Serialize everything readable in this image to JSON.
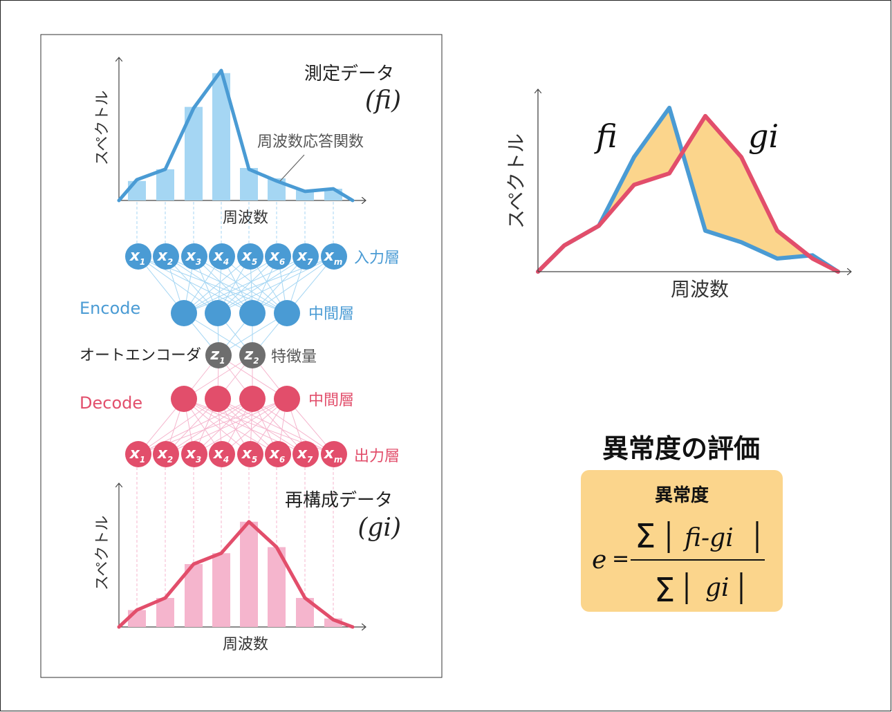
{
  "top_chart": {
    "title_line1": "測定データ",
    "title_line2": "(fi)",
    "ylabel": "スペクトル",
    "xlabel": "周波数",
    "annotation": "周波数応答関数",
    "bars": [
      0.15,
      0.24,
      0.72,
      0.98,
      0.25,
      0.17,
      0.08,
      0.09
    ],
    "line": [
      0.0,
      0.16,
      0.24,
      0.71,
      1.0,
      0.24,
      0.15,
      0.07,
      0.09,
      0.0
    ]
  },
  "network": {
    "input_label": "入力層",
    "input_nodes": [
      {
        "m": "x",
        "s": "1"
      },
      {
        "m": "x",
        "s": "2"
      },
      {
        "m": "x",
        "s": "3"
      },
      {
        "m": "x",
        "s": "4"
      },
      {
        "m": "x",
        "s": "5"
      },
      {
        "m": "x",
        "s": "6"
      },
      {
        "m": "x",
        "s": "7"
      },
      {
        "m": "x",
        "s": "m"
      }
    ],
    "encode_label": "Encode",
    "encode_hidden_label": "中間層",
    "autoencoder_label": "オートエンコーダ",
    "latent_nodes": [
      {
        "m": "z",
        "s": "1"
      },
      {
        "m": "z",
        "s": "2"
      }
    ],
    "latent_label": "特徴量",
    "decode_label": "Decode",
    "decode_hidden_label": "中間層",
    "output_nodes": [
      {
        "m": "x",
        "s": "1"
      },
      {
        "m": "x",
        "s": "2"
      },
      {
        "m": "x",
        "s": "3"
      },
      {
        "m": "x",
        "s": "4"
      },
      {
        "m": "x",
        "s": "5"
      },
      {
        "m": "x",
        "s": "6"
      },
      {
        "m": "x",
        "s": "7"
      },
      {
        "m": "x",
        "s": "m"
      }
    ],
    "output_label": "出力層"
  },
  "bottom_chart": {
    "title_line1": "再構成データ",
    "title_line2": "(gi)",
    "ylabel": "スペクトル",
    "xlabel": "周波数",
    "bars": [
      0.14,
      0.24,
      0.52,
      0.61,
      0.87,
      0.66,
      0.24,
      0.07
    ],
    "line": [
      0.0,
      0.14,
      0.24,
      0.52,
      0.61,
      0.87,
      0.66,
      0.24,
      0.06,
      0.0
    ]
  },
  "compare_chart": {
    "ylabel": "スペクトル",
    "xlabel": "周波数",
    "fi_label": "fi",
    "gi_label": "gi",
    "fi": [
      0.0,
      0.16,
      0.28,
      0.7,
      1.0,
      0.25,
      0.18,
      0.08,
      0.1,
      0.0
    ],
    "gi": [
      0.0,
      0.16,
      0.28,
      0.53,
      0.6,
      0.95,
      0.7,
      0.25,
      0.08,
      0.0
    ]
  },
  "evaluation": {
    "heading": "異常度の評価",
    "box_title": "異常度",
    "lhs": "e",
    "eq": "=",
    "sigma": "Σ",
    "numerator": "fi-gi",
    "denominator": "gi"
  },
  "colors": {
    "blue": "#4a9bd4",
    "light_blue": "#a5d6f3",
    "red": "#e24e6b",
    "pink": "#f5b5cd",
    "gray": "#6e6e6e",
    "fill": "#fbd58c",
    "box": "#fbd58c"
  }
}
